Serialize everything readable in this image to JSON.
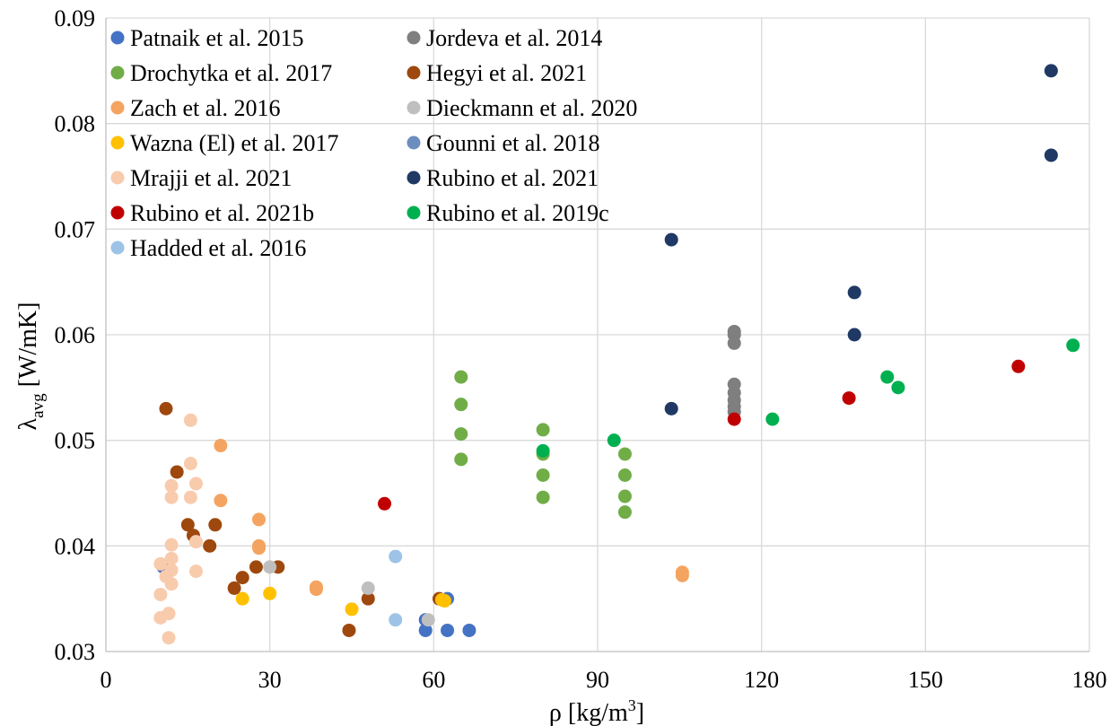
{
  "chart_data": {
    "type": "scatter",
    "xlabel": "ρ [kg/m³]",
    "ylabel": "λavg [W/mK]",
    "xlim": [
      0,
      180
    ],
    "ylim": [
      0.03,
      0.09
    ],
    "xticks": [
      0,
      30,
      60,
      90,
      120,
      150,
      180
    ],
    "yticks": [
      0.03,
      0.04,
      0.05,
      0.06,
      0.07,
      0.08,
      0.09
    ],
    "x_tick_labels": [
      "0",
      "30",
      "60",
      "90",
      "120",
      "150",
      "180"
    ],
    "y_tick_labels": [
      "0.03",
      "0.04",
      "0.05",
      "0.06",
      "0.07",
      "0.08",
      "0.09"
    ],
    "grid": "on",
    "legend_position": "top-left",
    "series": [
      {
        "name": "Patnaik et al. 2015",
        "color": "#4472c4",
        "points": [
          [
            10.5,
            0.038
          ],
          [
            58.5,
            0.032
          ],
          [
            62.5,
            0.032
          ],
          [
            66.5,
            0.032
          ],
          [
            62.5,
            0.035
          ],
          [
            58.5,
            0.033
          ]
        ]
      },
      {
        "name": "Jordeva et al. 2014",
        "color": "#7f7f7f",
        "points": [
          [
            115,
            0.0603
          ],
          [
            115,
            0.06
          ],
          [
            115,
            0.0592
          ],
          [
            115,
            0.0553
          ],
          [
            115,
            0.0545
          ],
          [
            115,
            0.0538
          ],
          [
            115,
            0.0532
          ],
          [
            115,
            0.0527
          ]
        ]
      },
      {
        "name": "Drochytka et al. 2017",
        "color": "#70ad47",
        "points": [
          [
            65,
            0.056
          ],
          [
            65,
            0.0534
          ],
          [
            65,
            0.0506
          ],
          [
            65,
            0.0482
          ],
          [
            80,
            0.051
          ],
          [
            80,
            0.0487
          ],
          [
            80,
            0.0467
          ],
          [
            80,
            0.0446
          ],
          [
            95,
            0.0487
          ],
          [
            95,
            0.0467
          ],
          [
            95,
            0.0447
          ],
          [
            95,
            0.0432
          ]
        ]
      },
      {
        "name": "Hegyi et al. 2021",
        "color": "#9e480e",
        "points": [
          [
            11,
            0.053
          ],
          [
            13,
            0.047
          ],
          [
            15,
            0.042
          ],
          [
            16,
            0.041
          ],
          [
            19,
            0.04
          ],
          [
            20,
            0.042
          ],
          [
            23.5,
            0.036
          ],
          [
            25,
            0.037
          ],
          [
            27.5,
            0.038
          ],
          [
            31.5,
            0.038
          ],
          [
            44.5,
            0.032
          ],
          [
            48,
            0.035
          ],
          [
            61,
            0.035
          ]
        ]
      },
      {
        "name": "Zach et al. 2016",
        "color": "#f4a460",
        "points": [
          [
            21,
            0.0495
          ],
          [
            21,
            0.0443
          ],
          [
            28,
            0.0425
          ],
          [
            28,
            0.04
          ],
          [
            28,
            0.0398
          ],
          [
            38.5,
            0.0361
          ],
          [
            38.5,
            0.0359
          ],
          [
            105.5,
            0.0375
          ],
          [
            105.5,
            0.0372
          ]
        ]
      },
      {
        "name": "Dieckmann et al. 2020",
        "color": "#bfbfbf",
        "points": [
          [
            30,
            0.038
          ],
          [
            48,
            0.036
          ],
          [
            59,
            0.033
          ]
        ]
      },
      {
        "name": "Wazna (El) et al. 2017",
        "color": "#ffc000",
        "points": [
          [
            25,
            0.035
          ],
          [
            30,
            0.0355
          ],
          [
            45,
            0.034
          ],
          [
            61.5,
            0.0349
          ],
          [
            62,
            0.0348
          ]
        ]
      },
      {
        "name": "Gounni et al. 2018",
        "color": "#6c8ebf",
        "points": []
      },
      {
        "name": "Mrajji et al. 2021",
        "color": "#f8cbad",
        "points": [
          [
            10,
            0.0383
          ],
          [
            10,
            0.0354
          ],
          [
            10,
            0.0332
          ],
          [
            11,
            0.0371
          ],
          [
            11.5,
            0.0336
          ],
          [
            11.5,
            0.0313
          ],
          [
            12,
            0.0457
          ],
          [
            12,
            0.0446
          ],
          [
            12,
            0.0401
          ],
          [
            12,
            0.0388
          ],
          [
            12,
            0.0377
          ],
          [
            12,
            0.0364
          ],
          [
            15.5,
            0.0519
          ],
          [
            15.5,
            0.0478
          ],
          [
            15.5,
            0.0446
          ],
          [
            16.5,
            0.0459
          ],
          [
            16.5,
            0.0404
          ],
          [
            16.5,
            0.0376
          ]
        ]
      },
      {
        "name": "Rubino et al. 2021",
        "color": "#203864",
        "points": [
          [
            103.5,
            0.069
          ],
          [
            103.5,
            0.053
          ],
          [
            137,
            0.064
          ],
          [
            137,
            0.06
          ],
          [
            173,
            0.085
          ],
          [
            173,
            0.077
          ]
        ]
      },
      {
        "name": "Rubino et al. 2021b",
        "color": "#c00000",
        "points": [
          [
            51,
            0.044
          ],
          [
            115,
            0.052
          ],
          [
            136,
            0.054
          ],
          [
            167,
            0.057
          ]
        ]
      },
      {
        "name": "Rubino et al. 2019c",
        "color": "#00b050",
        "points": [
          [
            80,
            0.049
          ],
          [
            93,
            0.05
          ],
          [
            122,
            0.052
          ],
          [
            143,
            0.056
          ],
          [
            145,
            0.055
          ],
          [
            177,
            0.059
          ]
        ]
      },
      {
        "name": "Hadded et al. 2016",
        "color": "#9dc3e6",
        "points": [
          [
            53,
            0.039
          ],
          [
            53,
            0.033
          ]
        ]
      }
    ]
  }
}
